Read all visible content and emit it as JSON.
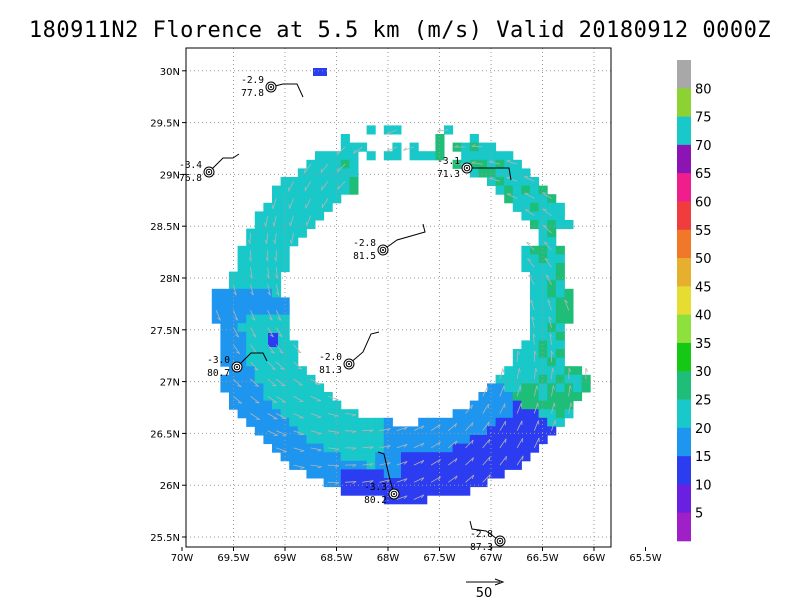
{
  "title": "180911N2 Florence at 5.5 km (m/s) Valid 20180912 0000Z",
  "x_ticks": [
    "70W",
    "69.5W",
    "69W",
    "68.5W",
    "68W",
    "67.5W",
    "67W",
    "66.5W",
    "66W",
    "65.5W"
  ],
  "y_ticks": [
    "25.5N",
    "26N",
    "26.5N",
    "27N",
    "27.5N",
    "28N",
    "28.5N",
    "29N",
    "29.5N",
    "30N"
  ],
  "colorbar": {
    "labels": [
      "5",
      "10",
      "15",
      "20",
      "25",
      "30",
      "35",
      "40",
      "45",
      "50",
      "55",
      "60",
      "65",
      "70",
      "75",
      "80"
    ],
    "colors": [
      "#a020c8",
      "#6a20e0",
      "#2c3cf0",
      "#1e96f0",
      "#19c8c8",
      "#1ebe78",
      "#14c814",
      "#8ee03c",
      "#e6dc32",
      "#e6af2d",
      "#f07828",
      "#f03c3c",
      "#f01e8c",
      "#8c14b4",
      "#19c8c8",
      "#8cd232",
      "#a8a8a8"
    ]
  },
  "stations": [
    {
      "top": "-2.9",
      "bottom": "77.8"
    },
    {
      "top": "-3.4",
      "bottom": "76.8"
    },
    {
      "top": "-3.1",
      "bottom": "71.3"
    },
    {
      "top": "-2.8",
      "bottom": "81.5"
    },
    {
      "top": "-3.0",
      "bottom": "80.7"
    },
    {
      "top": "-2.0",
      "bottom": "81.3"
    },
    {
      "top": "-3.3",
      "bottom": "80.2"
    },
    {
      "top": "-2.8",
      "bottom": "87.3"
    }
  ],
  "vector_scale_label": "50"
}
